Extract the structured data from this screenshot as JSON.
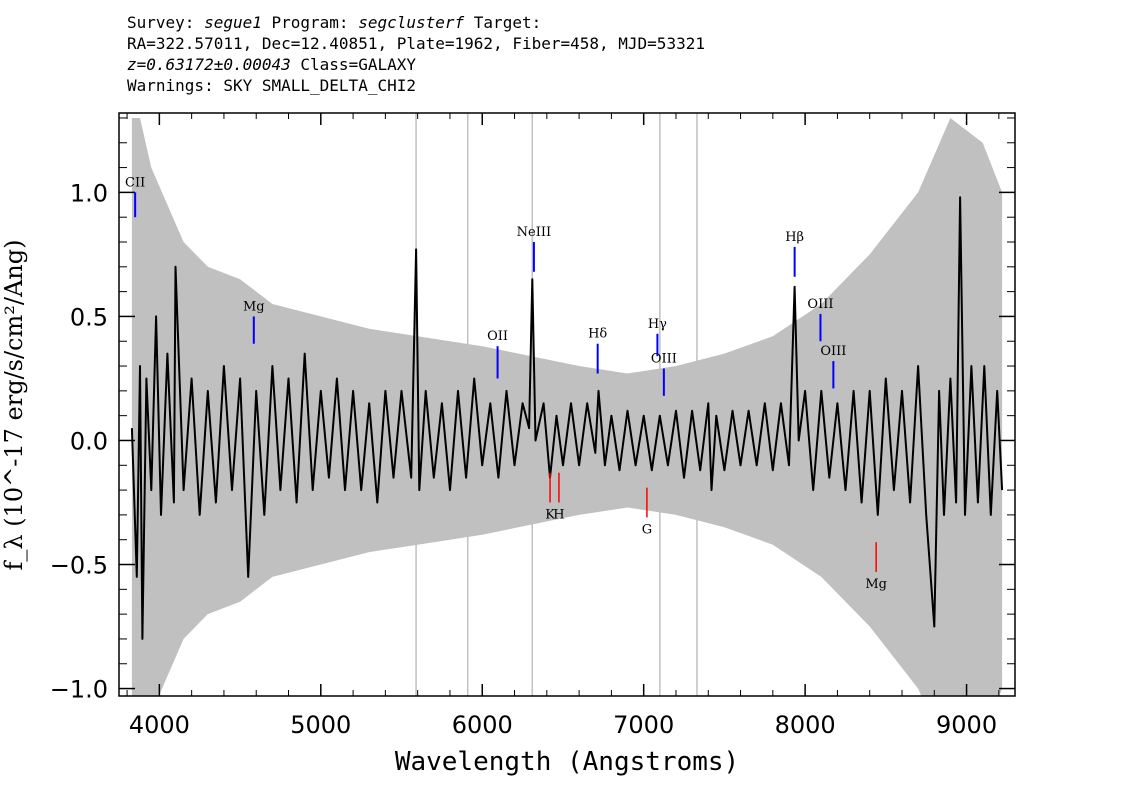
{
  "header": {
    "survey_label": "Survey: ",
    "survey": "segue1",
    "program_label": " Program: ",
    "program": "segclusterf",
    "target_label": " Target:",
    "line2": "RA=322.57011, Dec=12.40851, Plate=1962, Fiber=458, MJD=53321",
    "redshift": "z=0.63172±0.00043",
    "class_text": " Class=GALAXY",
    "warnings": "Warnings: SKY SMALL_DELTA_CHI2"
  },
  "chart_data": {
    "type": "line",
    "xlabel": "Wavelength (Angstroms)",
    "ylabel": "f_λ (10^-17 erg/s/cm²/Ang)",
    "xlim": [
      3750,
      9300
    ],
    "ylim": [
      -1.03,
      1.32
    ],
    "x_ticks": [
      4000,
      5000,
      6000,
      7000,
      8000,
      9000
    ],
    "x_tick_labels": [
      "4000",
      "5000",
      "6000",
      "7000",
      "8000",
      "9000"
    ],
    "y_ticks": [
      1.0,
      0.5,
      0.0,
      -0.5,
      -1.0
    ],
    "y_tick_labels": [
      "1.0",
      "0.5",
      "0.0",
      "−0.5",
      "−1.0"
    ],
    "colors": {
      "flux": "#000000",
      "error": "#c0c0c0",
      "emission": "#0000ff",
      "absorption": "#ff0000"
    },
    "flux_points": [
      [
        3830,
        0.05
      ],
      [
        3860,
        -0.55
      ],
      [
        3880,
        0.3
      ],
      [
        3895,
        -0.8
      ],
      [
        3920,
        0.25
      ],
      [
        3950,
        -0.2
      ],
      [
        3980,
        0.5
      ],
      [
        4010,
        -0.3
      ],
      [
        4050,
        0.35
      ],
      [
        4090,
        -0.25
      ],
      [
        4100,
        0.7
      ],
      [
        4150,
        -0.2
      ],
      [
        4200,
        0.25
      ],
      [
        4250,
        -0.3
      ],
      [
        4300,
        0.2
      ],
      [
        4350,
        -0.25
      ],
      [
        4400,
        0.3
      ],
      [
        4450,
        -0.2
      ],
      [
        4500,
        0.25
      ],
      [
        4550,
        -0.55
      ],
      [
        4600,
        0.2
      ],
      [
        4650,
        -0.3
      ],
      [
        4700,
        0.3
      ],
      [
        4750,
        -0.2
      ],
      [
        4800,
        0.25
      ],
      [
        4850,
        -0.25
      ],
      [
        4900,
        0.35
      ],
      [
        4950,
        -0.2
      ],
      [
        5000,
        0.2
      ],
      [
        5050,
        -0.15
      ],
      [
        5100,
        0.25
      ],
      [
        5150,
        -0.2
      ],
      [
        5200,
        0.2
      ],
      [
        5250,
        -0.2
      ],
      [
        5300,
        0.15
      ],
      [
        5350,
        -0.25
      ],
      [
        5400,
        0.2
      ],
      [
        5450,
        -0.15
      ],
      [
        5500,
        0.2
      ],
      [
        5560,
        -0.15
      ],
      [
        5590,
        0.77
      ],
      [
        5610,
        -0.2
      ],
      [
        5650,
        0.2
      ],
      [
        5700,
        -0.15
      ],
      [
        5750,
        0.15
      ],
      [
        5800,
        -0.2
      ],
      [
        5850,
        0.2
      ],
      [
        5900,
        -0.15
      ],
      [
        5950,
        0.25
      ],
      [
        6000,
        -0.1
      ],
      [
        6050,
        0.15
      ],
      [
        6100,
        -0.15
      ],
      [
        6150,
        0.2
      ],
      [
        6200,
        -0.1
      ],
      [
        6250,
        0.15
      ],
      [
        6290,
        0.05
      ],
      [
        6310,
        0.65
      ],
      [
        6330,
        0.0
      ],
      [
        6380,
        0.15
      ],
      [
        6420,
        -0.15
      ],
      [
        6460,
        0.1
      ],
      [
        6500,
        -0.1
      ],
      [
        6550,
        0.15
      ],
      [
        6600,
        -0.1
      ],
      [
        6650,
        0.15
      ],
      [
        6700,
        -0.05
      ],
      [
        6720,
        0.2
      ],
      [
        6760,
        -0.1
      ],
      [
        6800,
        0.1
      ],
      [
        6850,
        -0.12
      ],
      [
        6900,
        0.12
      ],
      [
        6950,
        -0.1
      ],
      [
        7000,
        0.1
      ],
      [
        7050,
        -0.12
      ],
      [
        7100,
        0.1
      ],
      [
        7150,
        -0.1
      ],
      [
        7200,
        0.12
      ],
      [
        7250,
        -0.15
      ],
      [
        7300,
        0.12
      ],
      [
        7350,
        -0.12
      ],
      [
        7400,
        0.15
      ],
      [
        7420,
        -0.2
      ],
      [
        7450,
        0.1
      ],
      [
        7500,
        -0.12
      ],
      [
        7550,
        0.12
      ],
      [
        7600,
        -0.1
      ],
      [
        7650,
        0.12
      ],
      [
        7700,
        -0.1
      ],
      [
        7750,
        0.15
      ],
      [
        7800,
        -0.12
      ],
      [
        7850,
        0.15
      ],
      [
        7900,
        -0.1
      ],
      [
        7935,
        0.62
      ],
      [
        7960,
        0.0
      ],
      [
        8000,
        0.2
      ],
      [
        8050,
        -0.2
      ],
      [
        8100,
        0.2
      ],
      [
        8150,
        -0.15
      ],
      [
        8200,
        0.15
      ],
      [
        8250,
        -0.2
      ],
      [
        8300,
        0.2
      ],
      [
        8350,
        -0.25
      ],
      [
        8400,
        0.2
      ],
      [
        8450,
        -0.3
      ],
      [
        8500,
        0.25
      ],
      [
        8550,
        -0.2
      ],
      [
        8600,
        0.2
      ],
      [
        8650,
        -0.25
      ],
      [
        8700,
        0.3
      ],
      [
        8750,
        -0.3
      ],
      [
        8800,
        -0.75
      ],
      [
        8830,
        0.2
      ],
      [
        8860,
        -0.3
      ],
      [
        8900,
        0.25
      ],
      [
        8935,
        -0.25
      ],
      [
        8960,
        0.98
      ],
      [
        8990,
        -0.3
      ],
      [
        9030,
        0.3
      ],
      [
        9070,
        -0.25
      ],
      [
        9110,
        0.3
      ],
      [
        9150,
        -0.3
      ],
      [
        9190,
        0.2
      ],
      [
        9220,
        -0.2
      ]
    ],
    "error_points": [
      [
        3830,
        1.3
      ],
      [
        3880,
        1.3
      ],
      [
        3950,
        1.1
      ],
      [
        4050,
        0.95
      ],
      [
        4150,
        0.8
      ],
      [
        4300,
        0.7
      ],
      [
        4500,
        0.65
      ],
      [
        4700,
        0.55
      ],
      [
        5000,
        0.5
      ],
      [
        5300,
        0.45
      ],
      [
        5600,
        0.42
      ],
      [
        6000,
        0.38
      ],
      [
        6300,
        0.34
      ],
      [
        6600,
        0.3
      ],
      [
        6900,
        0.27
      ],
      [
        7200,
        0.3
      ],
      [
        7500,
        0.35
      ],
      [
        7800,
        0.42
      ],
      [
        8100,
        0.55
      ],
      [
        8400,
        0.75
      ],
      [
        8700,
        1.0
      ],
      [
        8900,
        1.3
      ],
      [
        9100,
        1.2
      ],
      [
        9220,
        1.0
      ]
    ],
    "error_spikes": [
      5590,
      5910,
      6310,
      7100,
      7330
    ],
    "emission_lines": [
      {
        "label": "CII",
        "x": 3850,
        "y1": 0.9,
        "y2": 1.0
      },
      {
        "label": "Mg",
        "x": 4585,
        "y1": 0.39,
        "y2": 0.5
      },
      {
        "label": "OII",
        "x": 6095,
        "y1": 0.25,
        "y2": 0.38
      },
      {
        "label": "NeIII",
        "x": 6320,
        "y1": 0.68,
        "y2": 0.8
      },
      {
        "label": "Hδ",
        "x": 6715,
        "y1": 0.27,
        "y2": 0.39
      },
      {
        "label": "Hγ",
        "x": 7085,
        "y1": 0.34,
        "y2": 0.43
      },
      {
        "label": "OIII",
        "x": 7125,
        "y1": 0.18,
        "y2": 0.29
      },
      {
        "label": "Hβ",
        "x": 7935,
        "y1": 0.66,
        "y2": 0.78
      },
      {
        "label": "OIII",
        "x": 8095,
        "y1": 0.4,
        "y2": 0.51
      },
      {
        "label": "OIII",
        "x": 8175,
        "y1": 0.21,
        "y2": 0.32
      }
    ],
    "absorption_lines": [
      {
        "label": "K",
        "x": 6420,
        "y1": -0.25,
        "y2": -0.13
      },
      {
        "label": "H",
        "x": 6475,
        "y1": -0.25,
        "y2": -0.13
      },
      {
        "label": "G",
        "x": 7020,
        "y1": -0.31,
        "y2": -0.19
      },
      {
        "label": "Mg",
        "x": 8440,
        "y1": -0.53,
        "y2": -0.41
      }
    ],
    "grid": false,
    "legend": "none"
  }
}
